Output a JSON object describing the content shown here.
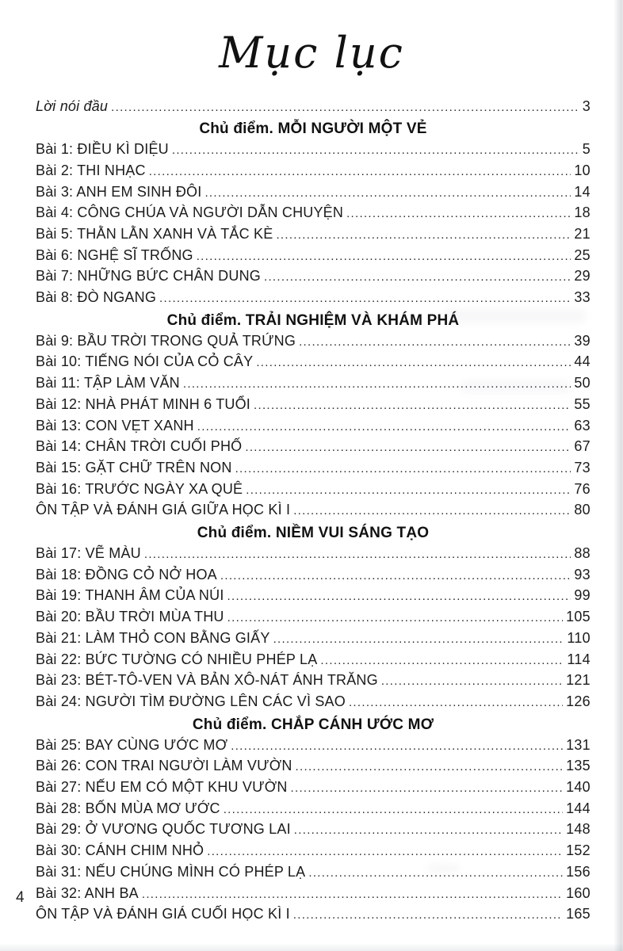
{
  "toc": {
    "title": "Mục lục",
    "page_number": "4",
    "preface": {
      "label": "Lời nói đầu",
      "page": "3"
    },
    "sections": [
      {
        "heading": "Chủ điểm. MỖI NGƯỜI MỘT VẺ",
        "entries": [
          {
            "label": "Bài 1: ĐIỀU KÌ DIỆU",
            "page": "5"
          },
          {
            "label": "Bài 2: THI NHẠC",
            "page": "10"
          },
          {
            "label": "Bài 3: ANH EM SINH ĐÔI",
            "page": "14"
          },
          {
            "label": "Bài 4: CÔNG CHÚA VÀ NGƯỜI DẪN CHUYỆN",
            "page": "18"
          },
          {
            "label": "Bài 5: THẰN LẰN XANH VÀ TẮC KÈ",
            "page": "21"
          },
          {
            "label": "Bài 6: NGHỆ SĨ TRỐNG",
            "page": "25"
          },
          {
            "label": "Bài 7: NHỮNG BỨC CHÂN DUNG",
            "page": "29"
          },
          {
            "label": "Bài 8: ĐÒ NGANG",
            "page": "33"
          }
        ]
      },
      {
        "heading": "Chủ điểm. TRẢI NGHIỆM VÀ KHÁM PHÁ",
        "entries": [
          {
            "label": "Bài 9: BẦU TRỜI TRONG QUẢ TRỨNG",
            "page": "39"
          },
          {
            "label": "Bài 10: TIẾNG NÓI CỦA CỎ CÂY",
            "page": "44"
          },
          {
            "label": "Bài 11: TẬP LÀM VĂN",
            "page": "50"
          },
          {
            "label": "Bài 12: NHÀ PHÁT MINH 6 TUỔI",
            "page": "55"
          },
          {
            "label": "Bài 13: CON VẸT XANH",
            "page": "63"
          },
          {
            "label": "Bài 14: CHÂN TRỜI CUỐI PHỐ",
            "page": "67"
          },
          {
            "label": "Bài 15: GẶT CHỮ TRÊN NON",
            "page": "73"
          },
          {
            "label": "Bài 16: TRƯỚC NGÀY XA QUÊ",
            "page": "76"
          },
          {
            "label": "ÔN TẬP VÀ ĐÁNH GIÁ GIỮA HỌC KÌ I",
            "page": "80"
          }
        ]
      },
      {
        "heading": "Chủ điểm. NIỀM VUI SÁNG TẠO",
        "entries": [
          {
            "label": "Bài 17: VẼ MÀU",
            "page": "88"
          },
          {
            "label": "Bài 18: ĐỒNG CỎ NỞ HOA",
            "page": "93"
          },
          {
            "label": "Bài 19: THANH ÂM CỦA NÚI",
            "page": "99"
          },
          {
            "label": "Bài 20: BẦU TRỜI MÙA THU",
            "page": "105"
          },
          {
            "label": "Bài 21: LÀM THỎ CON BẰNG GIẤY",
            "page": "110"
          },
          {
            "label": "Bài 22: BỨC TƯỜNG CÓ NHIỀU PHÉP LẠ",
            "page": "114"
          },
          {
            "label": "Bài 23: BÉT-TÔ-VEN VÀ BẢN XÔ-NÁT ÁNH TRĂNG",
            "page": "121"
          },
          {
            "label": "Bài 24: NGƯỜI TÌM ĐƯỜNG LÊN CÁC VÌ SAO",
            "page": "126"
          }
        ]
      },
      {
        "heading": "Chủ điểm. CHẮP CÁNH ƯỚC MƠ",
        "entries": [
          {
            "label": "Bài 25: BAY CÙNG ƯỚC MƠ",
            "page": "131"
          },
          {
            "label": "Bài 26: CON TRAI NGƯỜI LÀM VƯỜN",
            "page": "135"
          },
          {
            "label": "Bài 27: NẾU EM CÓ MỘT KHU VƯỜN",
            "page": "140"
          },
          {
            "label": "Bài 28: BỐN MÙA MƠ ƯỚC",
            "page": "144"
          },
          {
            "label": "Bài 29: Ở VƯƠNG QUỐC TƯƠNG LAI",
            "page": "148"
          },
          {
            "label": "Bài 30: CÁNH CHIM NHỎ",
            "page": "152"
          },
          {
            "label": "Bài 31: NẾU CHÚNG MÌNH CÓ PHÉP LẠ",
            "page": "156"
          },
          {
            "label": "Bài 32: ANH BA",
            "page": "160"
          },
          {
            "label": "ÔN TẬP VÀ ĐÁNH GIÁ CUỐI HỌC KÌ I",
            "page": "165"
          }
        ]
      }
    ]
  }
}
